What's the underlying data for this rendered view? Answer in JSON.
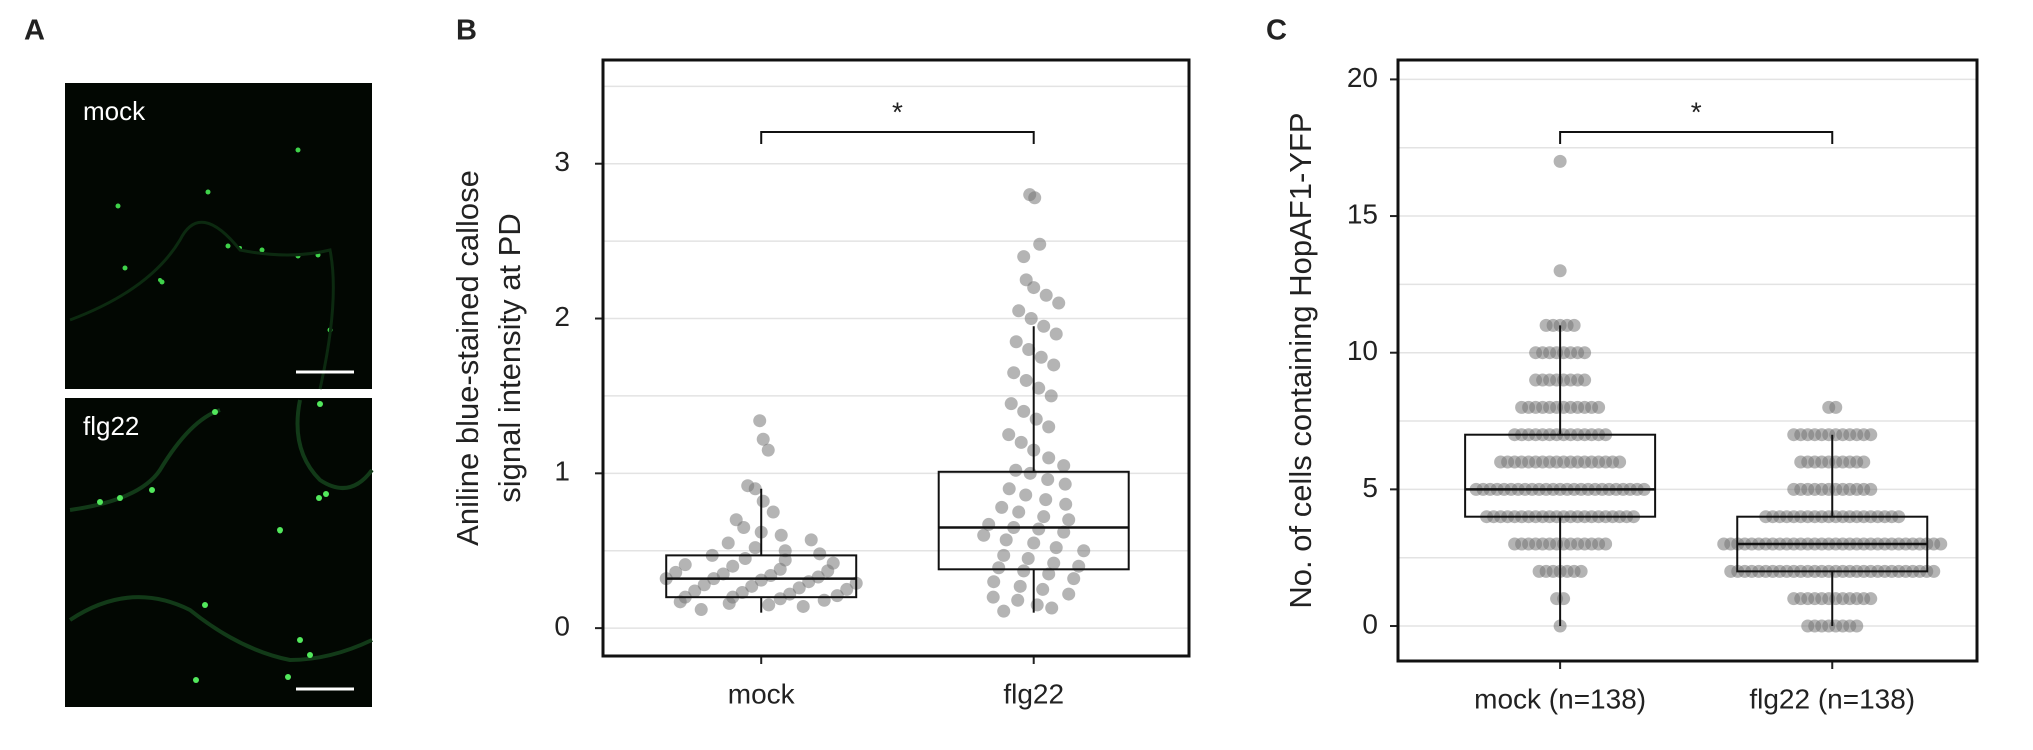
{
  "panel_labels": [
    "A",
    "B",
    "C"
  ],
  "panel_a": {
    "top_label": "mock",
    "bottom_label": "flg22"
  },
  "chart_data": [
    {
      "type": "box",
      "ylabel": [
        "Aniline blue-stained callose",
        "signal intensity at PD"
      ],
      "categories": [
        "mock",
        "flg22"
      ],
      "ylim": [
        -0.18,
        3.67
      ],
      "yticks": [
        0,
        1,
        2,
        3
      ],
      "minor_grid": [
        0.5,
        1.5,
        2.5,
        3.5
      ],
      "grid": true,
      "annotation": "*",
      "boxes": [
        {
          "whisker_low": 0.1,
          "q1": 0.2,
          "median": 0.32,
          "q3": 0.47,
          "whisker_high": 0.9
        },
        {
          "whisker_low": 0.1,
          "q1": 0.38,
          "median": 0.65,
          "q3": 1.01,
          "whisker_high": 1.95
        }
      ],
      "points": [
        [
          0.12,
          0.14,
          0.15,
          0.16,
          0.17,
          0.18,
          0.19,
          0.2,
          0.2,
          0.21,
          0.22,
          0.23,
          0.24,
          0.25,
          0.26,
          0.27,
          0.28,
          0.29,
          0.3,
          0.31,
          0.32,
          0.32,
          0.33,
          0.34,
          0.35,
          0.36,
          0.37,
          0.38,
          0.4,
          0.41,
          0.42,
          0.44,
          0.45,
          0.47,
          0.48,
          0.5,
          0.52,
          0.55,
          0.57,
          0.6,
          0.62,
          0.65,
          0.7,
          0.75,
          0.82,
          0.9,
          0.92,
          1.15,
          1.22,
          1.34
        ],
        [
          0.11,
          0.13,
          0.15,
          0.18,
          0.2,
          0.22,
          0.25,
          0.27,
          0.3,
          0.32,
          0.35,
          0.37,
          0.39,
          0.4,
          0.42,
          0.45,
          0.47,
          0.5,
          0.52,
          0.55,
          0.57,
          0.6,
          0.62,
          0.64,
          0.65,
          0.67,
          0.7,
          0.72,
          0.75,
          0.78,
          0.8,
          0.83,
          0.86,
          0.9,
          0.93,
          0.96,
          1.0,
          1.02,
          1.05,
          1.1,
          1.15,
          1.2,
          1.25,
          1.3,
          1.35,
          1.4,
          1.45,
          1.5,
          1.55,
          1.6,
          1.65,
          1.7,
          1.75,
          1.8,
          1.85,
          1.9,
          1.95,
          2.0,
          2.05,
          2.1,
          2.15,
          2.2,
          2.25,
          2.4,
          2.48,
          2.78,
          2.8
        ]
      ],
      "point_color": "#777777"
    },
    {
      "type": "box",
      "ylabel": [
        "No. of cells containing HopAF1-YFP"
      ],
      "categories": [
        "mock (n=138)",
        "flg22 (n=138)"
      ],
      "ylim": [
        -1.28,
        20.71
      ],
      "yticks": [
        0,
        5,
        10,
        15,
        20
      ],
      "minor_grid": [
        2.5,
        7.5,
        12.5,
        17.5
      ],
      "grid": true,
      "annotation": "*",
      "boxes": [
        {
          "whisker_low": 0,
          "q1": 4,
          "median": 5,
          "q3": 7,
          "whisker_high": 11
        },
        {
          "whisker_low": 0,
          "q1": 2,
          "median": 3,
          "q3": 4,
          "whisker_high": 7
        }
      ],
      "points_binned": [
        {
          "values": [
            0,
            1,
            2,
            3,
            4,
            5,
            6,
            7,
            8,
            9,
            10,
            11,
            13,
            17
          ],
          "counts": [
            1,
            2,
            7,
            14,
            22,
            25,
            18,
            14,
            12,
            8,
            8,
            5,
            1,
            1
          ]
        },
        {
          "values": [
            0,
            1,
            2,
            3,
            4,
            5,
            6,
            7,
            8
          ],
          "counts": [
            8,
            12,
            30,
            32,
            20,
            12,
            10,
            12,
            2
          ]
        }
      ],
      "point_color": "#777777"
    }
  ]
}
